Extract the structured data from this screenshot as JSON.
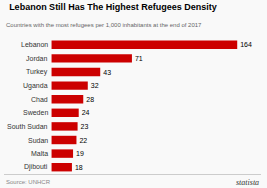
{
  "chart_data": {
    "type": "bar",
    "orientation": "horizontal",
    "title": "Lebanon Still Has The Highest Refugees Density",
    "subtitle": "Countries with the most refugees per 1,000 inhabitants at the end of 2017",
    "categories": [
      "Lebanon",
      "Jordan",
      "Turkey",
      "Uganda",
      "Chad",
      "Sweden",
      "South Sudan",
      "Sudan",
      "Malta",
      "Djibouti"
    ],
    "values": [
      164,
      71,
      43,
      32,
      28,
      24,
      23,
      22,
      19,
      18
    ],
    "color": "#cc0000",
    "xlim": [
      -42,
      185
    ],
    "data_labels": true,
    "tick_labels": false,
    "grid": false,
    "annotations": [
      "Source: UNHCR",
      "statista"
    ]
  }
}
